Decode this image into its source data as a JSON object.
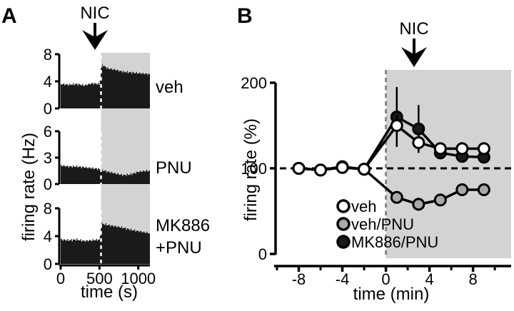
{
  "chart_data": [
    {
      "panel": "A",
      "type": "bar",
      "annotation": "NIC",
      "xlabel": "time (s)",
      "ylabel": "firing rate (Hz)",
      "x_ticks": [
        "0",
        "500",
        "1000"
      ],
      "xlim": [
        0,
        1150
      ],
      "stimulus_time": 520,
      "shaded_region": [
        520,
        1150
      ],
      "shade_color": "#d3d3d3",
      "bar_color": "#1a1a1a",
      "subplots": [
        {
          "label": "veh",
          "ylim": [
            0,
            8
          ],
          "y_ticks": [
            "0",
            "4",
            "8"
          ],
          "series": {
            "x": [
              0,
              100,
              200,
              300,
              400,
              500,
              520,
              560,
              600,
              700,
              800,
              900,
              1000,
              1100,
              1150
            ],
            "y": [
              3.6,
              3.5,
              3.6,
              3.4,
              3.7,
              3.6,
              6.5,
              6.2,
              5.9,
              5.7,
              5.4,
              5.3,
              5.2,
              5.1,
              5.0
            ]
          }
        },
        {
          "label": "PNU",
          "ylim": [
            0,
            6
          ],
          "y_ticks": [
            "0",
            "3",
            "6"
          ],
          "series": {
            "x": [
              0,
              100,
              200,
              300,
              400,
              500,
              520,
              600,
              700,
              800,
              900,
              1000,
              1100,
              1150
            ],
            "y": [
              2.1,
              2.0,
              2.0,
              1.9,
              1.8,
              1.7,
              1.6,
              1.4,
              1.2,
              1.0,
              1.1,
              1.4,
              1.5,
              1.5
            ]
          }
        },
        {
          "label": "MK886\n+PNU",
          "label_lines": [
            "MK886",
            "+PNU"
          ],
          "ylim": [
            0,
            8
          ],
          "y_ticks": [
            "0",
            "4",
            "8"
          ],
          "series": {
            "x": [
              0,
              100,
              200,
              300,
              400,
              500,
              520,
              600,
              700,
              800,
              900,
              1000,
              1100,
              1150
            ],
            "y": [
              3.5,
              3.4,
              3.5,
              3.3,
              3.4,
              3.5,
              5.8,
              5.6,
              5.4,
              5.2,
              4.9,
              4.7,
              4.5,
              4.4
            ]
          }
        }
      ]
    },
    {
      "panel": "B",
      "type": "line",
      "annotation": "NIC",
      "xlabel": "time (min)",
      "ylabel": "firing rate (%)",
      "xlim": [
        -10,
        11.5
      ],
      "ylim": [
        0,
        200
      ],
      "x_ticks": [
        -8,
        -4,
        0,
        4,
        8
      ],
      "y_ticks": [
        0,
        100,
        200
      ],
      "reference_line": 100,
      "stimulus_time": 0,
      "shaded_region": [
        0,
        11.5
      ],
      "shade_color": "#d3d3d3",
      "series": [
        {
          "name": "veh",
          "marker": "open",
          "fill": "#ffffff",
          "x": [
            -8,
            -6,
            -4,
            -2,
            1,
            3,
            5,
            7,
            9
          ],
          "y": [
            100,
            98,
            101,
            99,
            150,
            130,
            123,
            123,
            123
          ],
          "err": [
            0,
            0,
            0,
            0,
            12,
            10,
            4,
            4,
            4
          ]
        },
        {
          "name": "veh/PNU",
          "marker": "gray",
          "fill": "#a9a9a9",
          "x": [
            -8,
            -6,
            -4,
            -2,
            1,
            3,
            5,
            7,
            9
          ],
          "y": [
            100,
            98,
            101,
            99,
            66,
            58,
            63,
            75,
            75
          ],
          "err": [
            0,
            0,
            0,
            0,
            4,
            0,
            0,
            0,
            0
          ]
        },
        {
          "name": "MK886/PNU",
          "marker": "filled",
          "fill": "#1a1a1a",
          "x": [
            -8,
            -6,
            -4,
            -2,
            1,
            3,
            5,
            7,
            9
          ],
          "y": [
            100,
            98,
            102,
            99,
            160,
            146,
            118,
            114,
            113
          ],
          "err": [
            0,
            0,
            0,
            0,
            35,
            28,
            6,
            5,
            5
          ]
        }
      ]
    }
  ]
}
